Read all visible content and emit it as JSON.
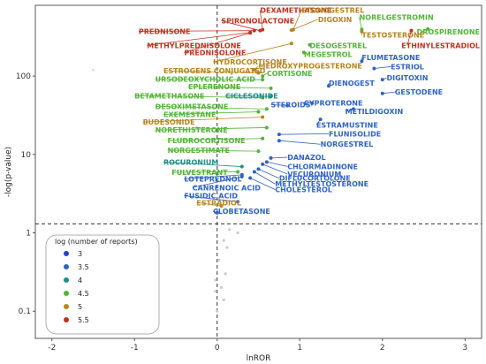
{
  "chart_data": {
    "type": "scatter",
    "xlabel": "lnROR",
    "ylabel": "-log(p-value)",
    "x_ticks": [
      -2,
      -1,
      0,
      1,
      2,
      3
    ],
    "y_ticks": [
      {
        "value": 0.1,
        "label": "0.1"
      },
      {
        "value": 1,
        "label": "1"
      },
      {
        "value": 10,
        "label": "10"
      },
      {
        "value": 100,
        "label": "100"
      }
    ],
    "y_scale": "log",
    "xlim": [
      -2.2,
      3.2
    ],
    "ylim": [
      0.045,
      800
    ],
    "grid": false,
    "reference_lines": {
      "x": 0,
      "y": 1.3
    },
    "legend": {
      "title": "log (number of reports)",
      "placement": "bottom-left",
      "entries": [
        {
          "label": "3",
          "color": "#2c3fcc"
        },
        {
          "label": "3.5",
          "color": "#2f63c6"
        },
        {
          "label": "4",
          "color": "#1f8f8a"
        },
        {
          "label": "4.5",
          "color": "#52b535"
        },
        {
          "label": "5",
          "color": "#b7851c"
        },
        {
          "label": "5.5",
          "color": "#c0331f"
        }
      ]
    },
    "labeled_points": [
      {
        "name": "DEXAMETHASONE",
        "x": 0.55,
        "y": 390,
        "color": "#c0331f",
        "lx": 0.52,
        "ly": 640
      },
      {
        "name": "SPIRONOLACTONE",
        "x": 0.52,
        "y": 380,
        "color": "#c0331f",
        "lx": 0.05,
        "ly": 470
      },
      {
        "name": "ETONOGESTREL",
        "x": 0.92,
        "y": 390,
        "color": "#b7851c",
        "lx": 1.02,
        "ly": 640
      },
      {
        "name": "DIGOXIN",
        "x": 0.9,
        "y": 385,
        "color": "#b7851c",
        "lx": 1.22,
        "ly": 490
      },
      {
        "name": "NORELGESTROMIN",
        "x": 1.75,
        "y": 395,
        "color": "#52b535",
        "lx": 1.72,
        "ly": 520
      },
      {
        "name": "DROSPIRENONE",
        "x": 2.55,
        "y": 400,
        "color": "#52b535",
        "lx": 2.48,
        "ly": 340
      },
      {
        "name": "PREDNISONE",
        "x": 0.45,
        "y": 380,
        "color": "#c0331f",
        "lx": -0.95,
        "ly": 345
      },
      {
        "name": "TESTOSTERONE",
        "x": 1.75,
        "y": 370,
        "color": "#b7851c",
        "lx": 1.75,
        "ly": 310
      },
      {
        "name": "METHYLPREDNISOLONE",
        "x": 0.4,
        "y": 360,
        "color": "#c0331f",
        "lx": -0.85,
        "ly": 228
      },
      {
        "name": "ETHINYLESTRADIOL",
        "x": 2.35,
        "y": 380,
        "color": "#c0331f",
        "lx": 2.3,
        "ly": 228
      },
      {
        "name": "PREDNISOLONE",
        "x": 0.4,
        "y": 355,
        "color": "#c0331f",
        "lx": -0.4,
        "ly": 185
      },
      {
        "name": "DESOGESTREL",
        "x": 1.12,
        "y": 250,
        "color": "#52b535",
        "lx": 1.12,
        "ly": 228
      },
      {
        "name": "MEGESTROL",
        "x": 1.05,
        "y": 200,
        "color": "#52b535",
        "lx": 1.05,
        "ly": 175
      },
      {
        "name": "HYDROCORTISONE",
        "x": 0.9,
        "y": 260,
        "color": "#b7851c",
        "lx": -0.05,
        "ly": 140
      },
      {
        "name": "FLUMETASONE",
        "x": 1.75,
        "y": 155,
        "color": "#2f63c6",
        "lx": 1.75,
        "ly": 160
      },
      {
        "name": "MEDROXYPROGESTERONE",
        "x": 0.45,
        "y": 120,
        "color": "#b7851c",
        "lx": 0.5,
        "ly": 125
      },
      {
        "name": "ESTROGENS CONJUGATED",
        "x": 0.5,
        "y": 110,
        "color": "#b7851c",
        "lx": -0.65,
        "ly": 108
      },
      {
        "name": "ESTRIOL",
        "x": 1.9,
        "y": 125,
        "color": "#2f63c6",
        "lx": 2.1,
        "ly": 122
      },
      {
        "name": "CORTISONE",
        "x": 0.55,
        "y": 100,
        "color": "#52b535",
        "lx": 0.6,
        "ly": 100
      },
      {
        "name": "URSODEOXYCHOLIC ACID",
        "x": 0.55,
        "y": 90,
        "color": "#52b535",
        "lx": -0.75,
        "ly": 85
      },
      {
        "name": "DIGITOXIN",
        "x": 2.0,
        "y": 90,
        "color": "#2f63c6",
        "lx": 2.05,
        "ly": 88
      },
      {
        "name": "DIENOGEST",
        "x": 1.35,
        "y": 75,
        "color": "#2f63c6",
        "lx": 1.35,
        "ly": 75
      },
      {
        "name": "EPLERENONE",
        "x": 0.65,
        "y": 70,
        "color": "#52b535",
        "lx": -0.35,
        "ly": 68
      },
      {
        "name": "GESTODENE",
        "x": 2.0,
        "y": 60,
        "color": "#2f63c6",
        "lx": 2.15,
        "ly": 58
      },
      {
        "name": "CICLESONIDE",
        "x": 0.65,
        "y": 55,
        "color": "#1f8f8a",
        "lx": 0.1,
        "ly": 52
      },
      {
        "name": "BETAMETHASONE",
        "x": 0.55,
        "y": 53,
        "color": "#52b535",
        "lx": -1.0,
        "ly": 52
      },
      {
        "name": "CYPROTERONE",
        "x": 1.15,
        "y": 45,
        "color": "#2f63c6",
        "lx": 1.05,
        "ly": 42
      },
      {
        "name": "STEROIDS",
        "x": 0.85,
        "y": 42,
        "color": "#2f63c6",
        "lx": 0.65,
        "ly": 40
      },
      {
        "name": "DESOXIMETASONE",
        "x": 0.6,
        "y": 38,
        "color": "#52b535",
        "lx": -0.75,
        "ly": 38
      },
      {
        "name": "METILDIGOXIN",
        "x": 1.65,
        "y": 38,
        "color": "#2f63c6",
        "lx": 1.55,
        "ly": 33
      },
      {
        "name": "EXEMESTANE",
        "x": 0.5,
        "y": 35,
        "color": "#52b535",
        "lx": -0.65,
        "ly": 30
      },
      {
        "name": "BUDESONIDE",
        "x": 0.55,
        "y": 30,
        "color": "#b7851c",
        "lx": -0.9,
        "ly": 24
      },
      {
        "name": "ESTRAMUSTINE",
        "x": 1.25,
        "y": 28,
        "color": "#2f63c6",
        "lx": 1.2,
        "ly": 22
      },
      {
        "name": "NORETHISTERONE",
        "x": 0.6,
        "y": 22,
        "color": "#52b535",
        "lx": -0.75,
        "ly": 19
      },
      {
        "name": "FLUNISOLIDE",
        "x": 0.75,
        "y": 18,
        "color": "#2f63c6",
        "lx": 1.35,
        "ly": 17
      },
      {
        "name": "FLUDROCORTISONE",
        "x": 0.55,
        "y": 16,
        "color": "#52b535",
        "lx": -0.6,
        "ly": 14
      },
      {
        "name": "NORGESTREL",
        "x": 0.75,
        "y": 15,
        "color": "#2f63c6",
        "lx": 1.25,
        "ly": 12.5
      },
      {
        "name": "NORGESTIMATE",
        "x": 0.5,
        "y": 11,
        "color": "#52b535",
        "lx": -0.6,
        "ly": 10.5
      },
      {
        "name": "DANAZOL",
        "x": 0.65,
        "y": 9,
        "color": "#2f63c6",
        "lx": 0.85,
        "ly": 8.5
      },
      {
        "name": "ROCURONIUM",
        "x": 0.3,
        "y": 7,
        "color": "#1f8f8a",
        "lx": -0.65,
        "ly": 7.4
      },
      {
        "name": "CHLORMADINONE",
        "x": 0.6,
        "y": 8,
        "color": "#2f63c6",
        "lx": 0.85,
        "ly": 6.5
      },
      {
        "name": "FULVESTRANT",
        "x": 0.25,
        "y": 6,
        "color": "#52b535",
        "lx": -0.55,
        "ly": 5.5
      },
      {
        "name": "VECURONIUM",
        "x": 0.55,
        "y": 7.5,
        "color": "#2f63c6",
        "lx": 0.85,
        "ly": 5.2
      },
      {
        "name": "DIFLUCORTOLONE",
        "x": 0.5,
        "y": 6.5,
        "color": "#2f63c6",
        "lx": 0.75,
        "ly": 4.6
      },
      {
        "name": "LOTEPREDNOL",
        "x": 0.3,
        "y": 5.5,
        "color": "#2f63c6",
        "lx": -0.4,
        "ly": 4.5
      },
      {
        "name": "METHYLTESTOSTERONE",
        "x": 0.45,
        "y": 6,
        "color": "#2f63c6",
        "lx": 0.7,
        "ly": 3.9
      },
      {
        "name": "CANRENOIC ACID",
        "x": 0.3,
        "y": 5.2,
        "color": "#2f63c6",
        "lx": -0.3,
        "ly": 3.5
      },
      {
        "name": "CHOLESTEROL",
        "x": 0.4,
        "y": 5,
        "color": "#2f63c6",
        "lx": 0.7,
        "ly": 3.3
      },
      {
        "name": "FUSIDIC ACID",
        "x": 0.25,
        "y": 2.5,
        "color": "#2f63c6",
        "lx": -0.4,
        "ly": 2.75
      },
      {
        "name": "ESTRADIOL",
        "x": 0.05,
        "y": 2.2,
        "color": "#b7851c",
        "lx": -0.25,
        "ly": 2.25
      },
      {
        "name": "CLOBETASONE",
        "x": 0.0,
        "y": 1.8,
        "color": "#2f63c6",
        "lx": -0.05,
        "ly": 1.75
      }
    ],
    "unlabeled_points": [
      {
        "x": -1.5,
        "y": 120,
        "color": "#cfe4ef"
      },
      {
        "x": -0.25,
        "y": 22,
        "color": "#d8c4cf"
      },
      {
        "x": 0.15,
        "y": 1.1,
        "color": "#cccccc"
      },
      {
        "x": 0.25,
        "y": 1.0,
        "color": "#cccccc"
      },
      {
        "x": 0.08,
        "y": 0.8,
        "color": "#cccccc"
      },
      {
        "x": 0.12,
        "y": 0.65,
        "color": "#cccccc"
      },
      {
        "x": 0.02,
        "y": 0.45,
        "color": "#cccccc"
      },
      {
        "x": 0.1,
        "y": 0.3,
        "color": "#cccccc"
      },
      {
        "x": -0.02,
        "y": 0.25,
        "color": "#cccccc"
      },
      {
        "x": 0.05,
        "y": 0.2,
        "color": "#cccccc"
      },
      {
        "x": -0.02,
        "y": 0.18,
        "color": "#cccccc"
      },
      {
        "x": 0.08,
        "y": 0.14,
        "color": "#cccccc"
      },
      {
        "x": 0.0,
        "y": 0.1,
        "color": "#cccccc"
      }
    ]
  }
}
